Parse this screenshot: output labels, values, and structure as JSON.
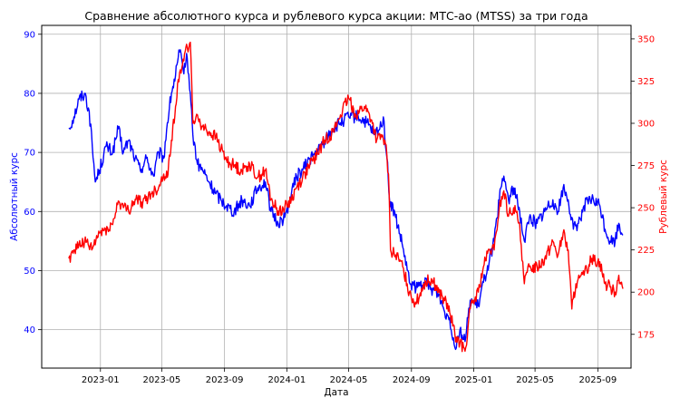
{
  "chart_data": {
    "type": "line",
    "title": "Сравнение абсолютного курса и рублевого курса акции: МТС-ао (MTSS) за три года",
    "xlabel": "Дата",
    "ylabel_left": "Абсолютный курс",
    "ylabel_right": "Рублевый курс",
    "grid": true,
    "x_ticks": [
      "2023-01",
      "2023-05",
      "2023-09",
      "2024-01",
      "2024-05",
      "2024-09",
      "2025-01",
      "2025-05",
      "2025-09"
    ],
    "y_left_ticks": [
      40,
      50,
      60,
      70,
      80,
      90
    ],
    "y_right_ticks": [
      175,
      200,
      225,
      250,
      275,
      300,
      325,
      350
    ],
    "ylim_left": [
      33.5,
      91.5
    ],
    "ylim_right": [
      155,
      358
    ],
    "xlim": [
      "2022-09-08",
      "2025-11-05"
    ],
    "colors": {
      "left": "#0000ff",
      "right": "#ff0000"
    },
    "series": [
      {
        "axis": "left",
        "points": [
          [
            "2022-10-31",
            74
          ],
          [
            "2022-11-10",
            76
          ],
          [
            "2022-11-20",
            79
          ],
          [
            "2022-12-01",
            80
          ],
          [
            "2022-12-10",
            77
          ],
          [
            "2022-12-16",
            71
          ],
          [
            "2022-12-22",
            65
          ],
          [
            "2022-12-30",
            67
          ],
          [
            "2023-01-12",
            71
          ],
          [
            "2023-01-25",
            70
          ],
          [
            "2023-02-05",
            74
          ],
          [
            "2023-02-15",
            70
          ],
          [
            "2023-02-25",
            72
          ],
          [
            "2023-03-10",
            69
          ],
          [
            "2023-03-20",
            67
          ],
          [
            "2023-04-01",
            69
          ],
          [
            "2023-04-15",
            66
          ],
          [
            "2023-04-25",
            70
          ],
          [
            "2023-05-05",
            69
          ],
          [
            "2023-05-12",
            75
          ],
          [
            "2023-05-20",
            80
          ],
          [
            "2023-05-28",
            83
          ],
          [
            "2023-06-05",
            87
          ],
          [
            "2023-06-12",
            84
          ],
          [
            "2023-06-20",
            86
          ],
          [
            "2023-06-26",
            80
          ],
          [
            "2023-07-01",
            73
          ],
          [
            "2023-07-10",
            68
          ],
          [
            "2023-07-20",
            67
          ],
          [
            "2023-08-01",
            65
          ],
          [
            "2023-08-15",
            63
          ],
          [
            "2023-08-25",
            62
          ],
          [
            "2023-09-05",
            61
          ],
          [
            "2023-09-20",
            60
          ],
          [
            "2023-10-05",
            62
          ],
          [
            "2023-10-20",
            61
          ],
          [
            "2023-11-05",
            64
          ],
          [
            "2023-11-20",
            65
          ],
          [
            "2023-12-01",
            60
          ],
          [
            "2023-12-15",
            58
          ],
          [
            "2023-12-28",
            59
          ],
          [
            "2024-01-10",
            63
          ],
          [
            "2024-01-20",
            66
          ],
          [
            "2024-02-01",
            67
          ],
          [
            "2024-02-15",
            69
          ],
          [
            "2024-03-01",
            70
          ],
          [
            "2024-03-15",
            72
          ],
          [
            "2024-04-01",
            74
          ],
          [
            "2024-04-15",
            75
          ],
          [
            "2024-05-01",
            76
          ],
          [
            "2024-05-20",
            76
          ],
          [
            "2024-06-05",
            75
          ],
          [
            "2024-06-20",
            73
          ],
          [
            "2024-07-01",
            74
          ],
          [
            "2024-07-08",
            76
          ],
          [
            "2024-07-15",
            69
          ],
          [
            "2024-07-20",
            62
          ],
          [
            "2024-08-01",
            59
          ],
          [
            "2024-08-15",
            54
          ],
          [
            "2024-08-28",
            48
          ],
          [
            "2024-09-10",
            47
          ],
          [
            "2024-09-25",
            48
          ],
          [
            "2024-10-10",
            47
          ],
          [
            "2024-10-25",
            46
          ],
          [
            "2024-11-05",
            43
          ],
          [
            "2024-11-15",
            42
          ],
          [
            "2024-11-25",
            37
          ],
          [
            "2024-12-05",
            40
          ],
          [
            "2024-12-15",
            38
          ],
          [
            "2024-12-25",
            45
          ],
          [
            "2025-01-10",
            44
          ],
          [
            "2025-01-20",
            48
          ],
          [
            "2025-02-01",
            52
          ],
          [
            "2025-02-10",
            55
          ],
          [
            "2025-02-20",
            62
          ],
          [
            "2025-03-01",
            66
          ],
          [
            "2025-03-10",
            62
          ],
          [
            "2025-03-20",
            64
          ],
          [
            "2025-04-01",
            60
          ],
          [
            "2025-04-10",
            55
          ],
          [
            "2025-04-20",
            59
          ],
          [
            "2025-05-05",
            58
          ],
          [
            "2025-05-20",
            60
          ],
          [
            "2025-06-05",
            62
          ],
          [
            "2025-06-15",
            60
          ],
          [
            "2025-06-25",
            64
          ],
          [
            "2025-07-05",
            62
          ],
          [
            "2025-07-15",
            57
          ],
          [
            "2025-07-25",
            58
          ],
          [
            "2025-08-05",
            61
          ],
          [
            "2025-08-20",
            62
          ],
          [
            "2025-09-05",
            61
          ],
          [
            "2025-09-15",
            57
          ],
          [
            "2025-09-25",
            55
          ],
          [
            "2025-10-05",
            55
          ],
          [
            "2025-10-12",
            58
          ],
          [
            "2025-10-20",
            56
          ]
        ]
      },
      {
        "axis": "right",
        "points": [
          [
            "2022-10-31",
            220
          ],
          [
            "2022-11-10",
            225
          ],
          [
            "2022-11-20",
            228
          ],
          [
            "2022-12-01",
            230
          ],
          [
            "2022-12-15",
            225
          ],
          [
            "2022-12-30",
            235
          ],
          [
            "2023-01-15",
            238
          ],
          [
            "2023-01-25",
            240
          ],
          [
            "2023-02-05",
            254
          ],
          [
            "2023-02-15",
            250
          ],
          [
            "2023-02-25",
            248
          ],
          [
            "2023-03-10",
            255
          ],
          [
            "2023-03-25",
            253
          ],
          [
            "2023-04-10",
            258
          ],
          [
            "2023-04-25",
            262
          ],
          [
            "2023-05-05",
            270
          ],
          [
            "2023-05-12",
            268
          ],
          [
            "2023-05-20",
            290
          ],
          [
            "2023-05-28",
            310
          ],
          [
            "2023-06-05",
            330
          ],
          [
            "2023-06-12",
            338
          ],
          [
            "2023-06-20",
            345
          ],
          [
            "2023-06-26",
            348
          ],
          [
            "2023-07-01",
            300
          ],
          [
            "2023-07-10",
            305
          ],
          [
            "2023-07-20",
            298
          ],
          [
            "2023-08-01",
            295
          ],
          [
            "2023-08-15",
            292
          ],
          [
            "2023-08-25",
            285
          ],
          [
            "2023-09-05",
            278
          ],
          [
            "2023-09-20",
            275
          ],
          [
            "2023-10-05",
            272
          ],
          [
            "2023-10-20",
            276
          ],
          [
            "2023-11-05",
            268
          ],
          [
            "2023-11-20",
            272
          ],
          [
            "2023-12-01",
            255
          ],
          [
            "2023-12-15",
            248
          ],
          [
            "2023-12-28",
            250
          ],
          [
            "2024-01-10",
            255
          ],
          [
            "2024-01-20",
            262
          ],
          [
            "2024-02-01",
            268
          ],
          [
            "2024-02-15",
            275
          ],
          [
            "2024-03-01",
            282
          ],
          [
            "2024-03-15",
            290
          ],
          [
            "2024-04-01",
            295
          ],
          [
            "2024-04-15",
            305
          ],
          [
            "2024-05-01",
            315
          ],
          [
            "2024-05-15",
            305
          ],
          [
            "2024-06-01",
            310
          ],
          [
            "2024-06-15",
            302
          ],
          [
            "2024-06-25",
            290
          ],
          [
            "2024-07-05",
            292
          ],
          [
            "2024-07-12",
            288
          ],
          [
            "2024-07-18",
            270
          ],
          [
            "2024-07-22",
            225
          ],
          [
            "2024-08-01",
            222
          ],
          [
            "2024-08-15",
            215
          ],
          [
            "2024-08-28",
            200
          ],
          [
            "2024-09-10",
            193
          ],
          [
            "2024-09-25",
            205
          ],
          [
            "2024-10-10",
            208
          ],
          [
            "2024-10-25",
            200
          ],
          [
            "2024-11-05",
            195
          ],
          [
            "2024-11-15",
            188
          ],
          [
            "2024-11-25",
            175
          ],
          [
            "2024-12-05",
            170
          ],
          [
            "2024-12-15",
            165
          ],
          [
            "2024-12-25",
            190
          ],
          [
            "2025-01-10",
            200
          ],
          [
            "2025-01-20",
            215
          ],
          [
            "2025-02-01",
            225
          ],
          [
            "2025-02-10",
            225
          ],
          [
            "2025-02-20",
            250
          ],
          [
            "2025-03-01",
            260
          ],
          [
            "2025-03-10",
            245
          ],
          [
            "2025-03-20",
            250
          ],
          [
            "2025-04-01",
            240
          ],
          [
            "2025-04-10",
            205
          ],
          [
            "2025-04-20",
            215
          ],
          [
            "2025-05-05",
            215
          ],
          [
            "2025-05-20",
            220
          ],
          [
            "2025-06-05",
            230
          ],
          [
            "2025-06-15",
            222
          ],
          [
            "2025-06-25",
            235
          ],
          [
            "2025-07-05",
            225
          ],
          [
            "2025-07-12",
            190
          ],
          [
            "2025-07-20",
            205
          ],
          [
            "2025-08-05",
            210
          ],
          [
            "2025-08-20",
            220
          ],
          [
            "2025-09-05",
            218
          ],
          [
            "2025-09-15",
            205
          ],
          [
            "2025-09-25",
            203
          ],
          [
            "2025-10-05",
            200
          ],
          [
            "2025-10-12",
            210
          ],
          [
            "2025-10-20",
            202
          ]
        ]
      }
    ]
  }
}
